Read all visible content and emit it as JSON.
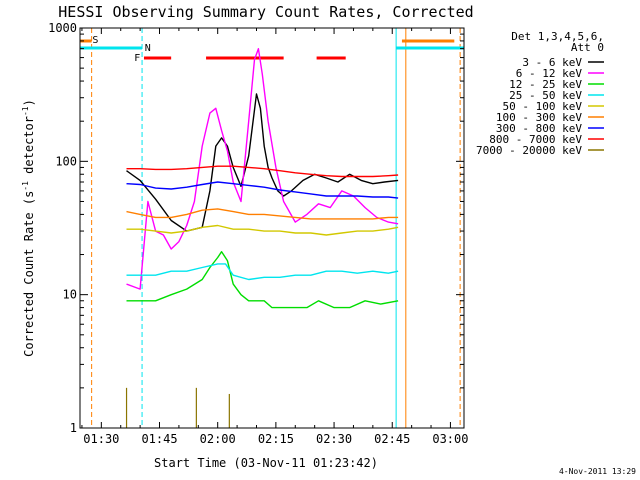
{
  "chart_data": {
    "type": "line",
    "title": "HESSI Observing Summary Count Rates, Corrected",
    "xlabel": "Start Time (03-Nov-11 01:23:42)",
    "ylabel_main": "Corrected Count Rate (s",
    "ylabel_sup1": "-1",
    "ylabel_mid": " detector",
    "ylabel_sup2": "-1",
    "ylabel_end": ")",
    "ylabel": "Corrected Count Rate (s^-1 detector^-1)",
    "yscale": "log",
    "xlim": [
      84.5,
      183.5
    ],
    "ylim": [
      1,
      1000
    ],
    "x_unit": "minutes after 00:00 UT, 03-Nov-2011",
    "x_ticks": [
      {
        "value": 90,
        "label": "01:30"
      },
      {
        "value": 105,
        "label": "01:45"
      },
      {
        "value": 120,
        "label": "02:00"
      },
      {
        "value": 135,
        "label": "02:15"
      },
      {
        "value": 150,
        "label": "02:30"
      },
      {
        "value": 165,
        "label": "02:45"
      },
      {
        "value": 180,
        "label": "03:00"
      }
    ],
    "y_ticks": [
      {
        "value": 1,
        "label": "1"
      },
      {
        "value": 10,
        "label": "10"
      },
      {
        "value": 100,
        "label": "100"
      },
      {
        "value": 1000,
        "label": "1000"
      }
    ],
    "legend": {
      "title_lines": [
        "Det 1,3,4,5,6,",
        "Att 0"
      ],
      "placement": "right"
    },
    "timestamp": "4-Nov-2011 13:29",
    "flags": {
      "saa_label": "S",
      "night_label": "N",
      "flare_label": "F",
      "saa_color": "#ff7f00",
      "night_color": "#00e5ee",
      "flare_color": "#ff0000",
      "saa_intervals": [
        [
          84.5,
          87.5
        ],
        [
          167.5,
          181
        ]
      ],
      "night_intervals": [
        [
          84.5,
          100.5
        ],
        [
          166,
          183.5
        ]
      ],
      "flare_intervals": [
        [
          101,
          108
        ],
        [
          117,
          137
        ],
        [
          145.5,
          153
        ]
      ],
      "night_boundaries": [
        84.5,
        100.5,
        166,
        183.5
      ],
      "saa_boundaries": [
        87.5,
        168.5,
        182.5
      ]
    },
    "series": [
      {
        "name": "3 - 6 keV",
        "color": "#000000",
        "x": [
          96.5,
          100,
          104,
          108,
          112,
          116,
          118,
          119.5,
          121,
          122.5,
          124,
          126,
          128,
          130,
          131,
          132,
          133,
          134,
          135.5,
          137,
          139,
          142,
          145,
          148,
          151,
          154,
          157,
          160,
          163,
          166.5
        ],
        "y": [
          85,
          72,
          52,
          36,
          30,
          32,
          60,
          130,
          150,
          130,
          90,
          65,
          110,
          320,
          250,
          130,
          90,
          75,
          60,
          55,
          60,
          72,
          80,
          75,
          70,
          80,
          72,
          68,
          70,
          72
        ]
      },
      {
        "name": "6 - 12 keV",
        "color": "#ff00ff",
        "x": [
          96.5,
          100,
          102,
          104,
          106,
          108,
          110,
          112,
          114,
          116,
          118,
          119.5,
          121,
          122.5,
          124,
          126,
          128,
          129.5,
          130.5,
          131.5,
          133,
          135,
          137,
          140,
          143,
          146,
          149,
          152,
          155,
          158,
          161,
          164,
          166.5
        ],
        "y": [
          12,
          11,
          50,
          30,
          28,
          22,
          25,
          33,
          50,
          130,
          230,
          250,
          170,
          120,
          70,
          50,
          200,
          580,
          700,
          450,
          200,
          90,
          50,
          35,
          40,
          48,
          45,
          60,
          55,
          45,
          38,
          35,
          34
        ]
      },
      {
        "name": "12 - 25 keV",
        "color": "#00dd00",
        "x": [
          96.5,
          100,
          104,
          108,
          112,
          116,
          118,
          120,
          121,
          122.5,
          124,
          126,
          128,
          130,
          132,
          134,
          137,
          140,
          143,
          146,
          150,
          154,
          158,
          162,
          166.5
        ],
        "y": [
          9,
          9,
          9,
          10,
          11,
          13,
          16,
          19,
          21,
          18,
          12,
          10,
          9,
          9,
          9,
          8,
          8,
          8,
          8,
          9,
          8,
          8,
          9,
          8.5,
          9
        ]
      },
      {
        "name": "25 - 50 keV",
        "color": "#00e5ee",
        "x": [
          96.5,
          100,
          104,
          108,
          112,
          116,
          120,
          122,
          124,
          128,
          132,
          136,
          140,
          144,
          148,
          152,
          156,
          160,
          164,
          166.5
        ],
        "y": [
          14,
          14,
          14,
          15,
          15,
          16,
          17,
          17,
          14,
          13,
          13.5,
          13.5,
          14,
          14,
          15,
          15,
          14.5,
          15,
          14.5,
          15
        ]
      },
      {
        "name": "50 - 100 keV",
        "color": "#d2c800",
        "x": [
          96.5,
          100,
          104,
          108,
          112,
          116,
          120,
          124,
          128,
          132,
          136,
          140,
          144,
          148,
          152,
          156,
          160,
          164,
          166.5
        ],
        "y": [
          31,
          31,
          30,
          29,
          30,
          32,
          33,
          31,
          31,
          30,
          30,
          29,
          29,
          28,
          29,
          30,
          30,
          31,
          32
        ]
      },
      {
        "name": "100 - 300 keV",
        "color": "#ff7f00",
        "x": [
          96.5,
          100,
          104,
          108,
          112,
          116,
          120,
          124,
          128,
          132,
          136,
          140,
          144,
          148,
          152,
          156,
          160,
          164,
          166.5
        ],
        "y": [
          42,
          40,
          38,
          38,
          40,
          43,
          44,
          42,
          40,
          40,
          39,
          38,
          37,
          37,
          37,
          37,
          37,
          38,
          38
        ]
      },
      {
        "name": "300 - 800 keV",
        "color": "#0000ff",
        "x": [
          96.5,
          100,
          104,
          108,
          112,
          116,
          120,
          124,
          128,
          132,
          136,
          140,
          144,
          148,
          152,
          156,
          160,
          164,
          166.5
        ],
        "y": [
          68,
          67,
          63,
          62,
          64,
          67,
          70,
          68,
          66,
          64,
          61,
          59,
          57,
          55,
          55,
          55,
          54,
          54,
          53
        ]
      },
      {
        "name": "800 - 7000 keV",
        "color": "#ff0000",
        "x": [
          96.5,
          100,
          104,
          108,
          112,
          116,
          120,
          124,
          128,
          132,
          136,
          140,
          144,
          148,
          152,
          156,
          160,
          164,
          166.5
        ],
        "y": [
          88,
          88,
          87,
          87,
          88,
          90,
          92,
          92,
          90,
          88,
          85,
          82,
          80,
          78,
          77,
          77,
          77,
          78,
          79
        ]
      },
      {
        "name": "7000 - 20000 keV",
        "color": "#8b7500",
        "x": [
          96.5,
          114.5,
          123
        ],
        "y": [
          2.0,
          2.0,
          1.8
        ]
      }
    ]
  }
}
